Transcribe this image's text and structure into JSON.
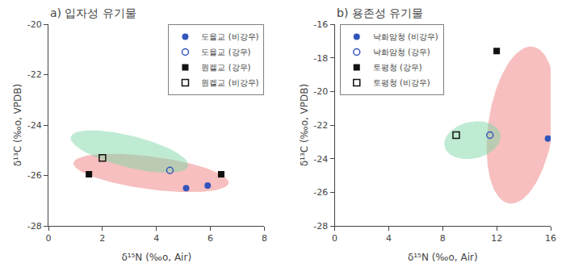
{
  "chart_data": [
    {
      "type": "scatter",
      "title": "a) 입자성 유기물",
      "xlabel": "δ¹⁵N (‰o, Air)",
      "ylabel": "δ¹³C (‰o, VPDB)",
      "xlim": [
        0,
        8
      ],
      "ylim": [
        -28,
        -20
      ],
      "xticks": [
        0,
        2,
        4,
        6,
        8
      ],
      "yticks": [
        -28,
        -26,
        -24,
        -22,
        -20
      ],
      "grid": false,
      "legend": "upper right",
      "ellipses": [
        {
          "cx": 3.8,
          "cy": -25.9,
          "width": 5.8,
          "height": 1.3,
          "angle": -8,
          "color": "#f08080"
        },
        {
          "cx": 3.0,
          "cy": -25.05,
          "width": 4.5,
          "height": 1.25,
          "angle": -15,
          "color": "#80d8a8"
        }
      ],
      "series": [
        {
          "name": "도율교 (비강우)",
          "marker": "circle",
          "color": "#3355bb",
          "x": [
            5.1,
            5.9
          ],
          "values": [
            -26.5,
            -26.4
          ]
        },
        {
          "name": "도율교 (강우)",
          "marker": "circle-open",
          "color": "#3355bb",
          "x": [
            4.5
          ],
          "values": [
            -25.8
          ]
        },
        {
          "name": "원켈교 (강우)",
          "marker": "square",
          "color": "#111111",
          "x": [
            1.5,
            6.4
          ],
          "values": [
            -25.95,
            -25.95
          ]
        },
        {
          "name": "원켈교 (비강우)",
          "marker": "square-open",
          "color": "#111111",
          "x": [
            2.0
          ],
          "values": [
            -25.3
          ]
        }
      ]
    },
    {
      "type": "scatter",
      "title": "b) 용존성 유기물",
      "xlabel": "δ¹⁵N (‰o, Air)",
      "ylabel": "δ¹³C (‰o, VPDB)",
      "xlim": [
        0,
        16
      ],
      "ylim": [
        -28,
        -16
      ],
      "xticks": [
        0,
        4,
        8,
        12,
        16
      ],
      "yticks": [
        -28,
        -26,
        -24,
        -22,
        -20,
        -18,
        -16
      ],
      "grid": false,
      "legend": "upper left",
      "ellipses": [
        {
          "cx": 13.8,
          "cy": -22.0,
          "width": 4.8,
          "height": 9.5,
          "angle": -12,
          "color": "#f08080"
        },
        {
          "cx": 10.2,
          "cy": -22.9,
          "width": 4.2,
          "height": 2.2,
          "angle": 8,
          "color": "#80d8a8"
        }
      ],
      "series": [
        {
          "name": "낙화암청 (비강우)",
          "marker": "circle",
          "color": "#3355bb",
          "x": [
            15.8
          ],
          "values": [
            -22.8
          ]
        },
        {
          "name": "낙화암청 (강우)",
          "marker": "circle-open",
          "color": "#3355bb",
          "x": [
            11.5
          ],
          "values": [
            -22.6
          ]
        },
        {
          "name": "토평청 (강우)",
          "marker": "square",
          "color": "#111111",
          "x": [
            12.0
          ],
          "values": [
            -17.6
          ]
        },
        {
          "name": "토평청 (비강우)",
          "marker": "square-open",
          "color": "#111111",
          "x": [
            9.0
          ],
          "values": [
            -22.6
          ]
        }
      ]
    }
  ]
}
